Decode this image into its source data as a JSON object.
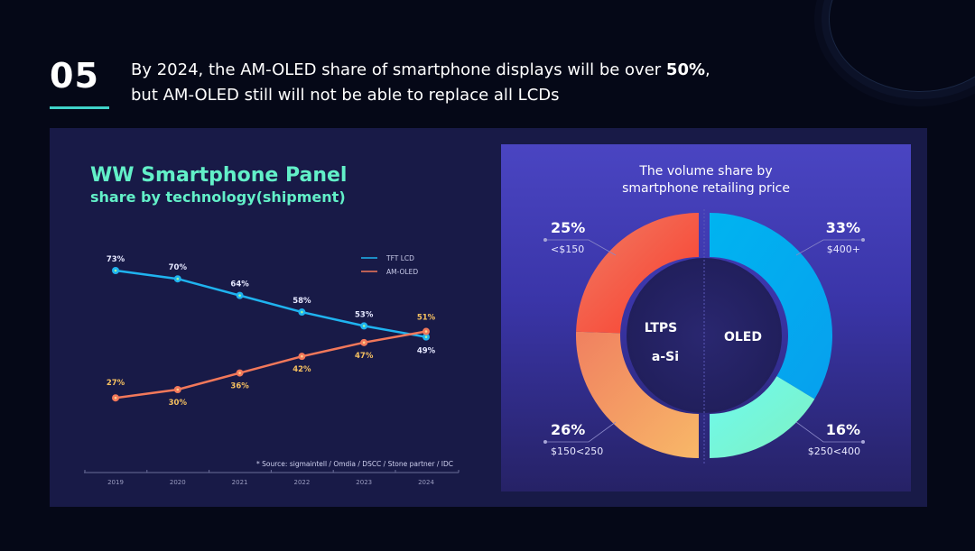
{
  "header": {
    "number": "05",
    "line1_pre": "By 2024, the AM-OLED share of smartphone displays will be over ",
    "line1_bold": "50%",
    "line1_post": ",",
    "line2": "but AM-OLED still will not be able to replace all LCDs"
  },
  "chart_data": [
    {
      "type": "line",
      "title": "WW Smartphone Panel",
      "subtitle": "share by technology(shipment)",
      "x": [
        "2019",
        "2020",
        "2021",
        "2022",
        "2023",
        "2024"
      ],
      "series": [
        {
          "name": "TFT LCD",
          "color": "#1fb3ef",
          "values": [
            73,
            70,
            64,
            58,
            53,
            49
          ],
          "labels": [
            "73%",
            "70%",
            "64%",
            "58%",
            "53%",
            "49%"
          ]
        },
        {
          "name": "AM-OLED",
          "color": "#f2785a",
          "values": [
            27,
            30,
            36,
            42,
            47,
            51
          ],
          "labels": [
            "27%",
            "30%",
            "36%",
            "42%",
            "47%",
            "51%"
          ]
        }
      ],
      "ylim": [
        20,
        80
      ],
      "legend": "top-right",
      "source": "* Source: sigmaintell / Omdia / DSCC / Stone partner / IDC"
    },
    {
      "type": "pie",
      "title_line1": "The volume share by",
      "title_line2": "smartphone retailing price",
      "slices": [
        {
          "pct": 33,
          "label": "33%",
          "range": "$400+",
          "group": "OLED",
          "colors": [
            "#00b4f0",
            "#07a0ee"
          ]
        },
        {
          "pct": 16,
          "label": "16%",
          "range": "$250<400",
          "group": "OLED",
          "colors": [
            "#6dfbf0",
            "#80f0c0"
          ]
        },
        {
          "pct": 26,
          "label": "26%",
          "range": "$150<250",
          "group": "a-Si",
          "colors": [
            "#f08060",
            "#f8b868"
          ]
        },
        {
          "pct": 25,
          "label": "25%",
          "range": "<$150",
          "group": "LTPS",
          "colors": [
            "#ef7d65",
            "#fb3a2a"
          ]
        }
      ],
      "center_labels": {
        "ltps": "LTPS",
        "asi": "a-Si",
        "oled": "OLED"
      }
    }
  ]
}
